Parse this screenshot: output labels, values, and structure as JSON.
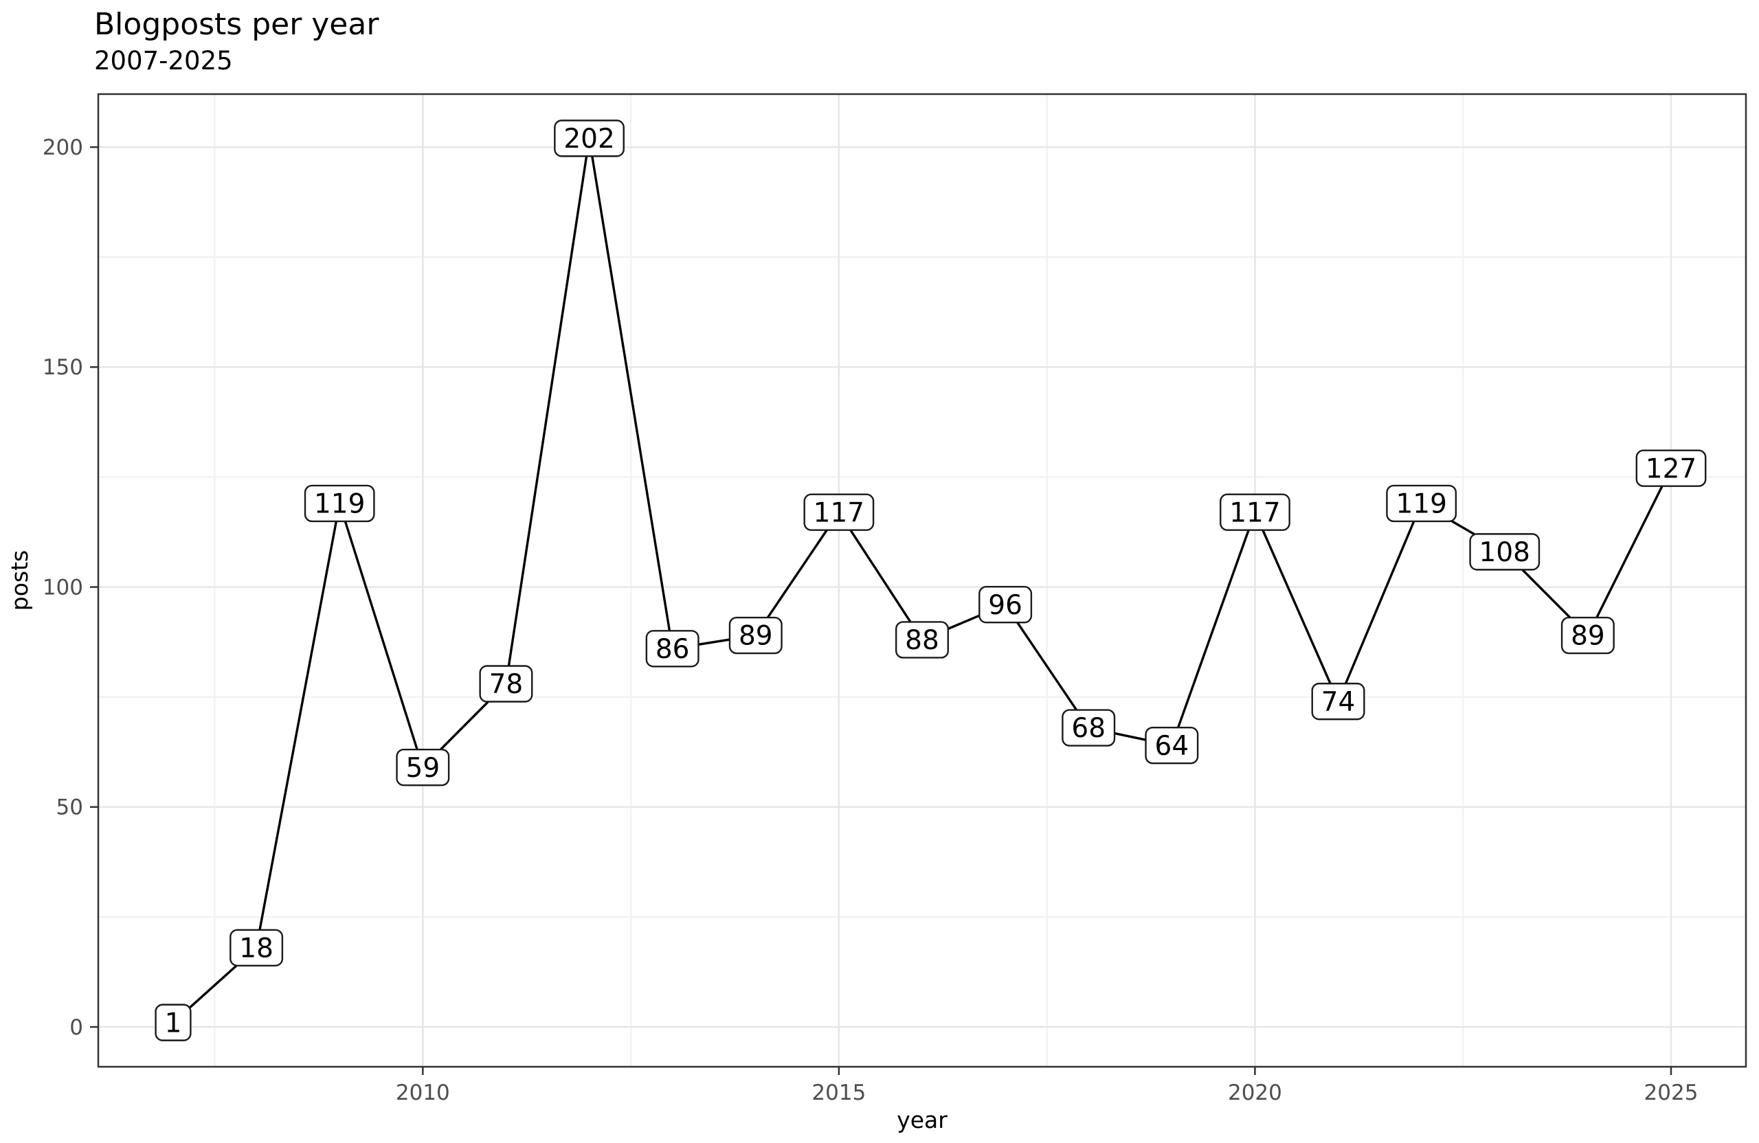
{
  "header": {
    "title": "Blogposts per year",
    "subtitle": "2007-2025"
  },
  "chart_data": {
    "type": "line",
    "title": "Blogposts per year",
    "subtitle": "2007-2025",
    "xlabel": "year",
    "ylabel": "posts",
    "x": [
      2007,
      2008,
      2009,
      2010,
      2011,
      2012,
      2013,
      2014,
      2015,
      2016,
      2017,
      2018,
      2019,
      2020,
      2021,
      2022,
      2023,
      2024,
      2025
    ],
    "values": [
      1,
      18,
      119,
      59,
      78,
      202,
      86,
      89,
      117,
      88,
      96,
      68,
      64,
      117,
      74,
      119,
      108,
      89,
      127
    ],
    "point_labels": [
      "1",
      "18",
      "119",
      "59",
      "78",
      "202",
      "86",
      "89",
      "117",
      "88",
      "96",
      "68",
      "64",
      "117",
      "74",
      "119",
      "108",
      "89",
      "127"
    ],
    "x_ticks": {
      "values": [
        2010,
        2015,
        2020,
        2025
      ],
      "labels": [
        "2010",
        "2015",
        "2020",
        "2025"
      ]
    },
    "y_ticks": {
      "values": [
        0,
        50,
        100,
        150,
        200
      ],
      "labels": [
        "0",
        "50",
        "100",
        "150",
        "200"
      ]
    },
    "x_minor_ticks": [
      2007.5,
      2012.5,
      2017.5,
      2022.5
    ],
    "y_minor_ticks": [
      25,
      75,
      125,
      175
    ],
    "xlim": [
      2006.1,
      2025.9
    ],
    "ylim": [
      -9.05,
      212.05
    ],
    "grid": {
      "major": true,
      "minor": true
    },
    "legend": "none",
    "style": {
      "line_color": "#000000",
      "label_box_fill": "#ffffff",
      "label_box_border": "#1a1a1a",
      "label_text_color": "#000000",
      "grid_major_color": "#e6e6e6",
      "grid_minor_color": "#f0f0f0",
      "panel_border_color": "#333333",
      "tick_color": "#333333",
      "tick_label_color": "#4d4d4d",
      "axis_title_color": "#000000",
      "panel_fill": "#ffffff",
      "background": "#ffffff"
    }
  }
}
